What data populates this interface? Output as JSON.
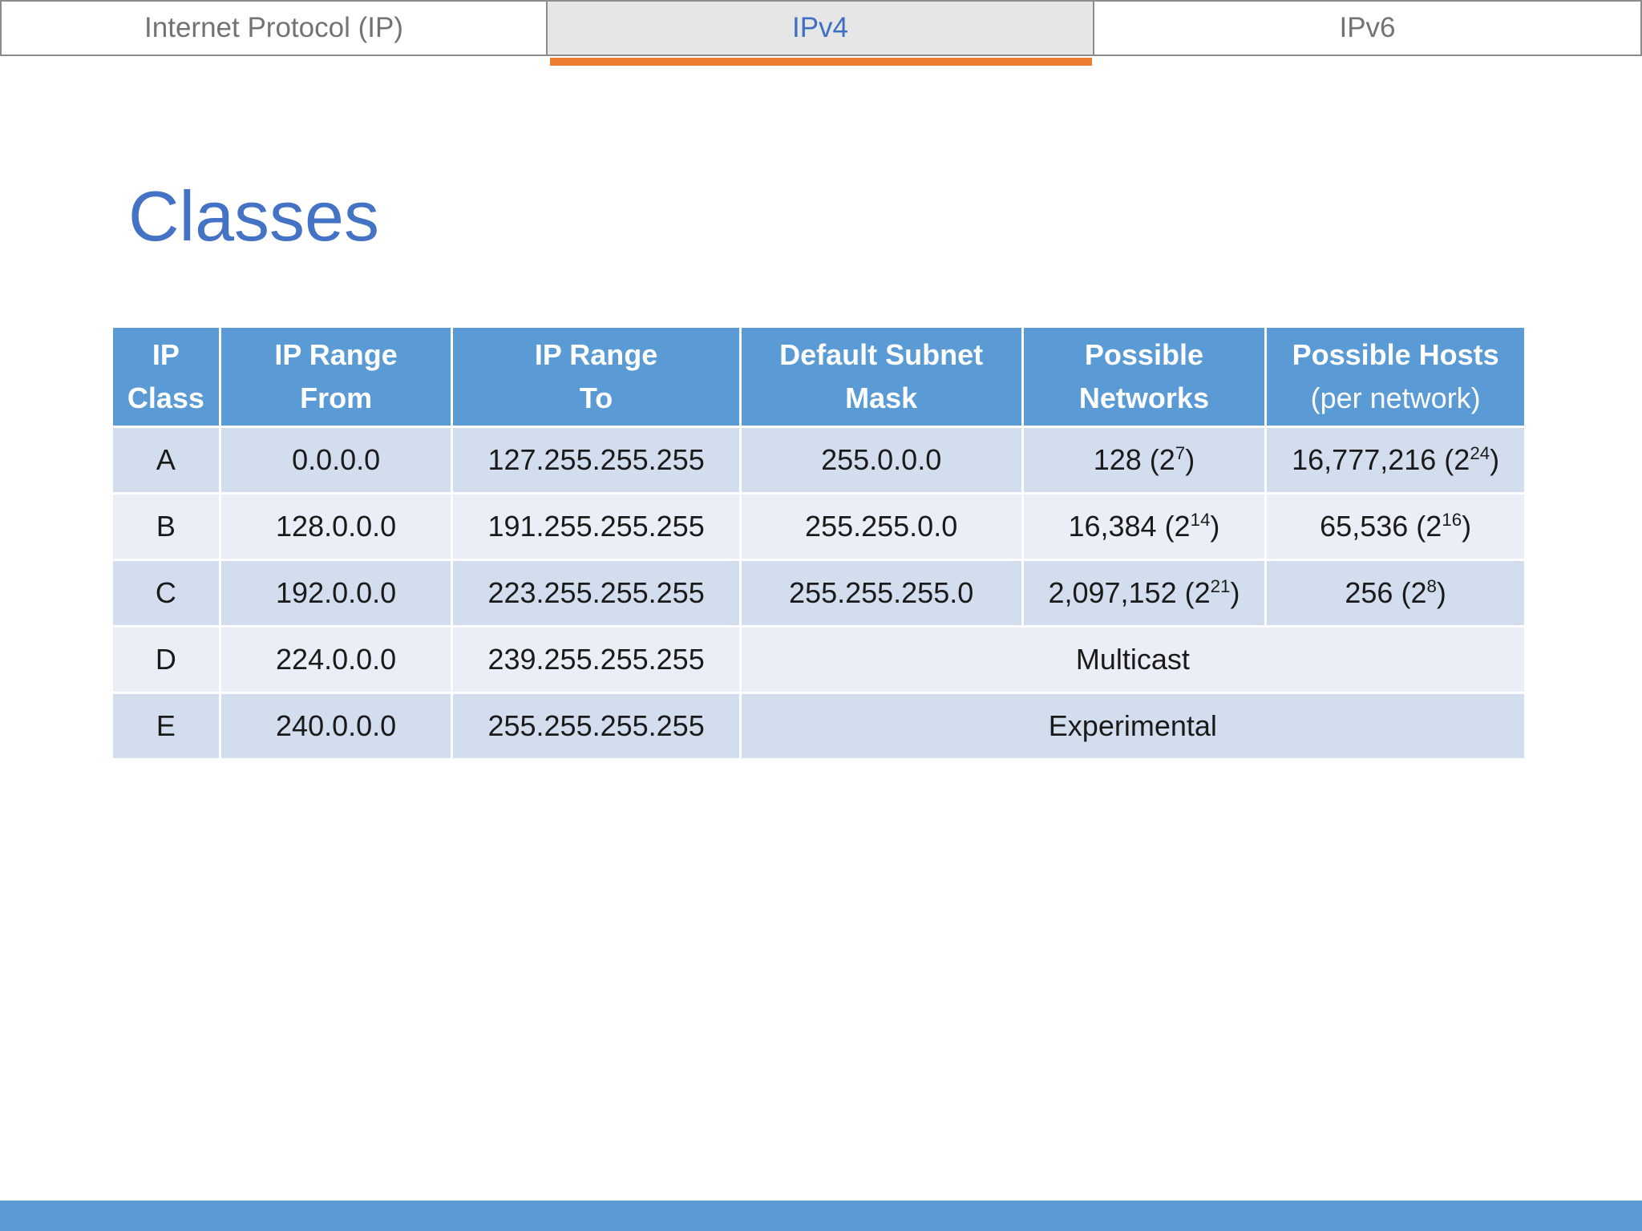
{
  "tabs": [
    {
      "label": "Internet Protocol (IP)"
    },
    {
      "label": "IPv4"
    },
    {
      "label": "IPv6"
    }
  ],
  "active_tab": "IPv4",
  "accent_color": "#ed7d31",
  "brand_color": "#4472c4",
  "title": "Classes",
  "table": {
    "headers": [
      {
        "line1": "IP",
        "line2": "Class"
      },
      {
        "line1": "IP Range",
        "line2": "From"
      },
      {
        "line1": "IP Range",
        "line2": "To"
      },
      {
        "line1": "Default Subnet",
        "line2": "Mask"
      },
      {
        "line1": "Possible",
        "line2": "Networks"
      },
      {
        "line1": "Possible Hosts",
        "line2": "(per network)"
      }
    ],
    "rows": [
      {
        "cls": "A",
        "from": "0.0.0.0",
        "to": "127.255.255.255",
        "mask": "255.0.0.0",
        "networks": {
          "value": "128 (2",
          "exp": "7",
          "close": ")"
        },
        "hosts": {
          "value": "16,777,216 (2",
          "exp": "24",
          "close": ")"
        }
      },
      {
        "cls": "B",
        "from": "128.0.0.0",
        "to": "191.255.255.255",
        "mask": "255.255.0.0",
        "networks": {
          "value": "16,384 (2",
          "exp": "14",
          "close": ")"
        },
        "hosts": {
          "value": "65,536 (2",
          "exp": "16",
          "close": ")"
        }
      },
      {
        "cls": "C",
        "from": "192.0.0.0",
        "to": "223.255.255.255",
        "mask": "255.255.255.0",
        "networks": {
          "value": "2,097,152 (2",
          "exp": "21",
          "close": ")"
        },
        "hosts": {
          "value": "256 (2",
          "exp": "8",
          "close": ")"
        }
      },
      {
        "cls": "D",
        "from": "224.0.0.0",
        "to": "239.255.255.255",
        "note": "Multicast"
      },
      {
        "cls": "E",
        "from": "240.0.0.0",
        "to": "255.255.255.255",
        "note": "Experimental"
      }
    ]
  }
}
